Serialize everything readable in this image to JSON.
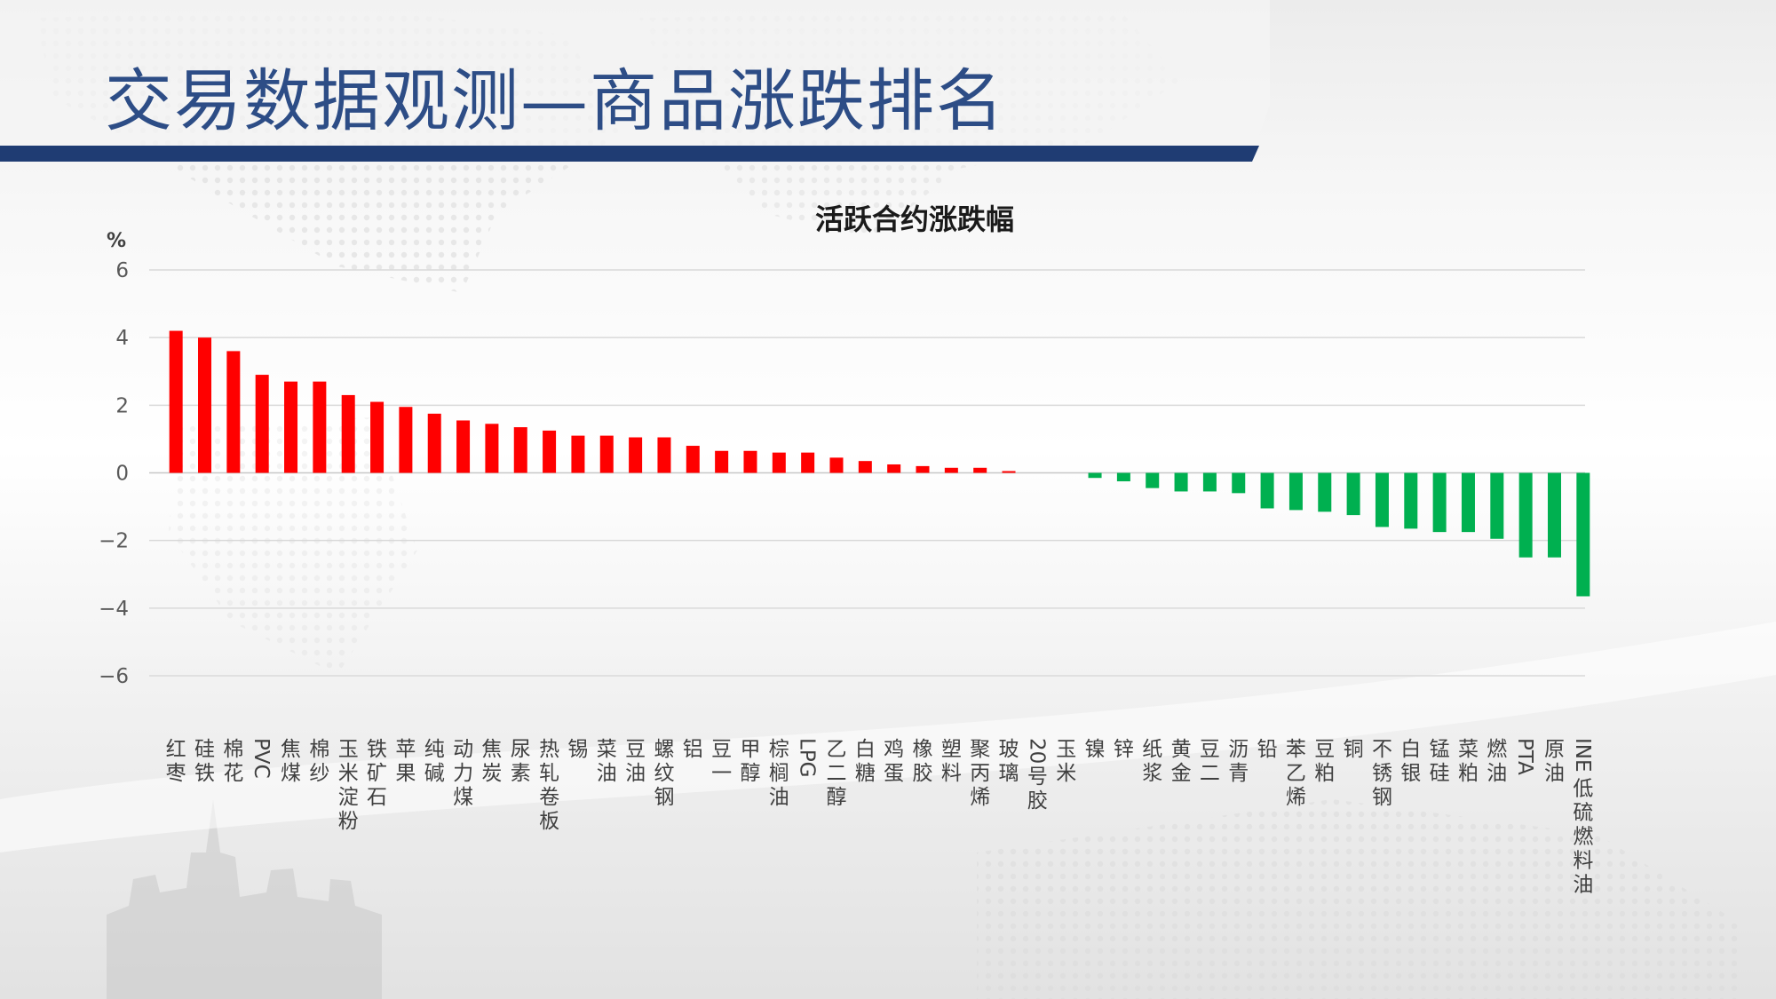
{
  "slide": {
    "title": "交易数据观测—商品涨跌排名",
    "accent_color": "#1f3c73",
    "title_color": "#2d4d86"
  },
  "chart_data": {
    "type": "bar",
    "title": "活跃合约涨跌幅",
    "ylabel": "%",
    "xlabel": "",
    "ylim": [
      -6,
      6
    ],
    "yticks": [
      6,
      4,
      2,
      0,
      -2,
      -4,
      -6
    ],
    "ytick_labels": [
      "6",
      "4",
      "2",
      "0",
      "−2",
      "−4",
      "−6"
    ],
    "grid": true,
    "positive_color": "#ff0000",
    "negative_color": "#00b050",
    "categories": [
      "红枣",
      "硅铁",
      "棉花",
      "PVC",
      "焦煤",
      "棉纱",
      "玉米淀粉",
      "铁矿石",
      "苹果",
      "纯碱",
      "动力煤",
      "焦炭",
      "尿素",
      "热轧卷板",
      "锡",
      "菜油",
      "豆油",
      "螺纹钢",
      "铝",
      "豆一",
      "甲醇",
      "棕榈油",
      "LPG",
      "乙二醇",
      "白糖",
      "鸡蛋",
      "橡胶",
      "塑料",
      "聚丙烯",
      "玻璃",
      "20号胶",
      "玉米",
      "镍",
      "锌",
      "纸浆",
      "黄金",
      "豆二",
      "沥青",
      "铅",
      "苯乙烯",
      "豆粕",
      "铜",
      "不锈钢",
      "白银",
      "锰硅",
      "菜粕",
      "燃油",
      "PTA",
      "原油",
      "INE低硫燃料油"
    ],
    "values": [
      4.2,
      4.0,
      3.6,
      2.9,
      2.7,
      2.7,
      2.3,
      2.1,
      1.95,
      1.75,
      1.55,
      1.45,
      1.35,
      1.25,
      1.1,
      1.1,
      1.05,
      1.05,
      0.8,
      0.65,
      0.65,
      0.6,
      0.6,
      0.45,
      0.35,
      0.25,
      0.2,
      0.15,
      0.15,
      0.05,
      0.0,
      0.0,
      -0.15,
      -0.25,
      -0.45,
      -0.55,
      -0.55,
      -0.6,
      -1.05,
      -1.1,
      -1.15,
      -1.25,
      -1.6,
      -1.65,
      -1.75,
      -1.75,
      -1.95,
      -2.5,
      -2.5,
      -3.65
    ]
  }
}
